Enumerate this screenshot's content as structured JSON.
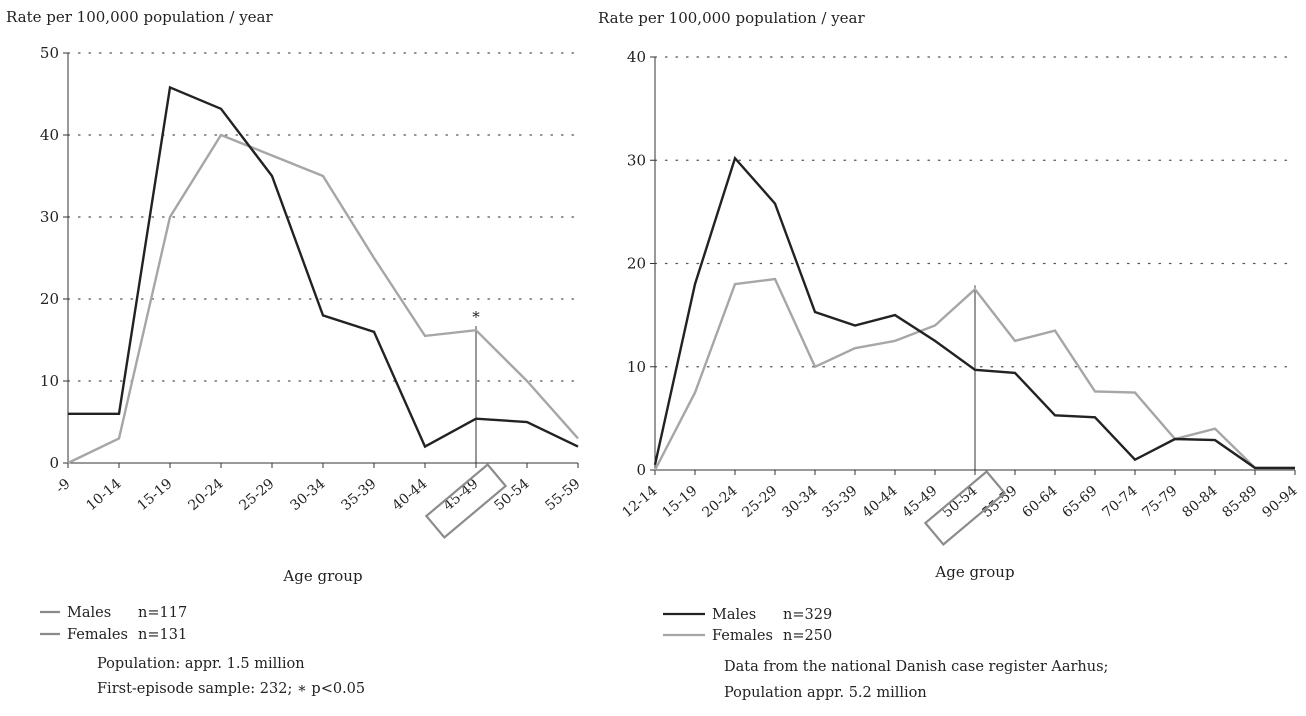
{
  "colors": {
    "males": "#222222",
    "females": "#a6a6a6",
    "axis": "#333333",
    "grid": "#555555",
    "box": "#8c8c8c"
  },
  "chart_data": [
    {
      "type": "line",
      "ylabel": "Rate per 100,000 population / year",
      "xlabel": "Age group",
      "ylim": [
        0,
        50
      ],
      "yticks": [
        "0",
        "10",
        "20",
        "30",
        "40",
        "50"
      ],
      "grid": "dotted horizontal",
      "categories": [
        "-9",
        "10-14",
        "15-19",
        "20-24",
        "25-29",
        "30-34",
        "35-39",
        "40-44",
        "45-49",
        "50-54",
        "55-59"
      ],
      "highlighted_category": "45-49",
      "series": [
        {
          "name": "Males",
          "values": [
            6,
            6,
            45.8,
            43.2,
            35,
            18,
            16,
            2,
            5.4,
            5,
            2
          ]
        },
        {
          "name": "Females",
          "values": [
            0,
            3,
            30,
            40,
            37.5,
            35,
            25,
            15.5,
            16.2,
            10,
            3
          ]
        }
      ],
      "annotation": "*",
      "legend": [
        {
          "label": "Males",
          "n": "n=117"
        },
        {
          "label": "Females",
          "n": "n=131"
        }
      ],
      "notes": [
        "Population: appr. 1.5 million",
        "First-episode sample: 232; ∗ p<0.05"
      ]
    },
    {
      "type": "line",
      "ylabel": "Rate per 100,000 population / year",
      "xlabel": "Age group",
      "ylim": [
        0,
        40
      ],
      "yticks": [
        "0",
        "10",
        "20",
        "30",
        "40"
      ],
      "grid": "dotted horizontal",
      "categories": [
        "12-14",
        "15-19",
        "20-24",
        "25-29",
        "30-34",
        "35-39",
        "40-44",
        "45-49",
        "50-54",
        "55-59",
        "60-64",
        "65-69",
        "70-74",
        "75-79",
        "80-84",
        "85-89",
        "90-94"
      ],
      "highlighted_category": "50-54",
      "series": [
        {
          "name": "Males",
          "values": [
            0.5,
            18,
            30.2,
            25.8,
            15.3,
            14,
            15,
            12.5,
            9.7,
            9.4,
            5.3,
            5.1,
            1,
            3,
            2.9,
            0.2,
            0.2
          ]
        },
        {
          "name": "Females",
          "values": [
            0,
            7.5,
            18,
            18.5,
            10,
            11.8,
            12.5,
            14,
            17.5,
            12.5,
            13.5,
            7.6,
            7.5,
            3,
            4,
            0.2,
            0.2
          ]
        }
      ],
      "legend": [
        {
          "label": "Males",
          "n": "n=329"
        },
        {
          "label": "Females",
          "n": "n=250"
        }
      ],
      "notes": [
        "Data from the national Danish case register Aarhus;",
        "Population appr. 5.2 million"
      ]
    }
  ]
}
